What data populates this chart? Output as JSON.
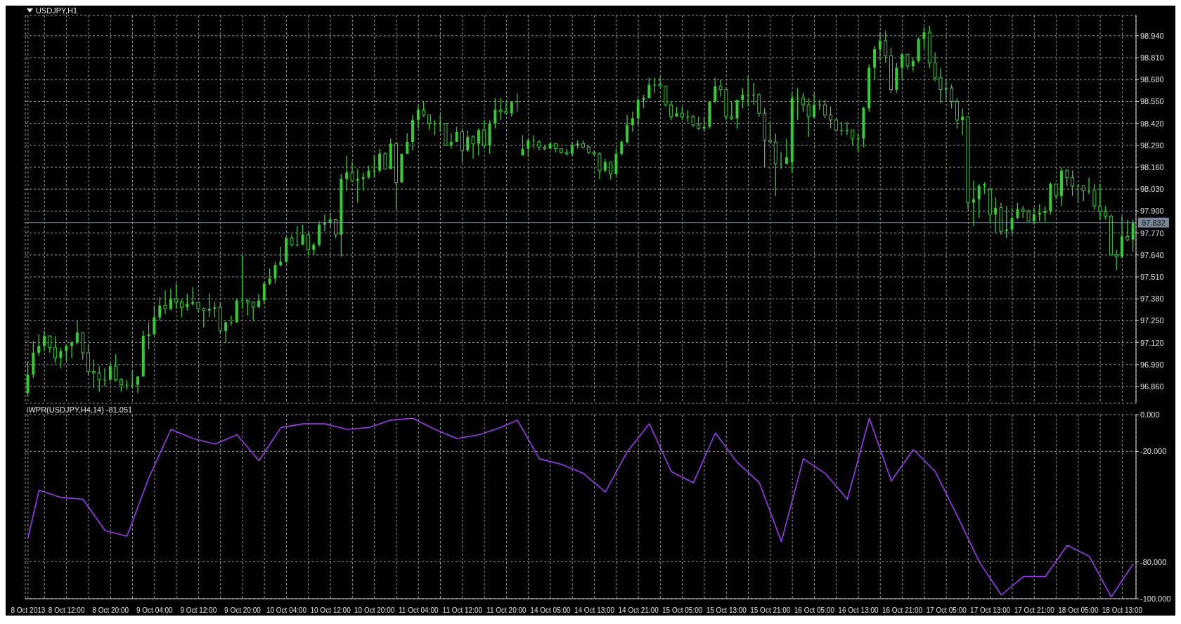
{
  "chart_data": [
    {
      "type": "candlestick",
      "title": "USDJPY,H1",
      "color": "#33cc33",
      "grid": true,
      "tick_labels": "y",
      "ohlc": [
        [
          96.82,
          97.01,
          96.8,
          96.93
        ],
        [
          96.93,
          97.13,
          96.91,
          97.06
        ],
        [
          97.06,
          97.17,
          97.04,
          97.1
        ],
        [
          97.1,
          97.19,
          97.07,
          97.16
        ],
        [
          97.16,
          97.16,
          97.06,
          97.09
        ],
        [
          97.09,
          97.16,
          97.0,
          97.03
        ],
        [
          97.03,
          97.09,
          96.97,
          97.07
        ],
        [
          97.07,
          97.11,
          97.01,
          97.1
        ],
        [
          97.1,
          97.13,
          97.03,
          97.12
        ],
        [
          97.12,
          97.25,
          97.11,
          97.18
        ],
        [
          97.18,
          97.18,
          97.02,
          97.06
        ],
        [
          97.06,
          97.11,
          96.93,
          96.95
        ],
        [
          96.95,
          97.02,
          96.85,
          96.94
        ],
        [
          96.94,
          96.98,
          96.83,
          96.9
        ],
        [
          96.9,
          96.97,
          96.86,
          96.9
        ],
        [
          96.9,
          97.0,
          96.89,
          96.98
        ],
        [
          96.98,
          97.05,
          96.89,
          96.9
        ],
        [
          96.9,
          96.91,
          96.83,
          96.87
        ],
        [
          96.87,
          96.9,
          96.84,
          96.87
        ],
        [
          96.87,
          96.95,
          96.85,
          96.87
        ],
        [
          96.87,
          96.92,
          96.82,
          96.92
        ],
        [
          96.92,
          97.19,
          96.92,
          97.16
        ],
        [
          97.16,
          97.24,
          97.08,
          97.17
        ],
        [
          97.17,
          97.34,
          97.16,
          97.27
        ],
        [
          97.27,
          97.39,
          97.25,
          97.34
        ],
        [
          97.34,
          97.43,
          97.29,
          97.32
        ],
        [
          97.32,
          97.44,
          97.31,
          97.38
        ],
        [
          97.38,
          97.47,
          97.32,
          97.36
        ],
        [
          97.36,
          97.38,
          97.27,
          97.33
        ],
        [
          97.33,
          97.41,
          97.31,
          97.35
        ],
        [
          97.35,
          97.45,
          97.34,
          97.36
        ],
        [
          97.36,
          97.36,
          97.3,
          97.32
        ],
        [
          97.32,
          97.33,
          97.21,
          97.31
        ],
        [
          97.31,
          97.41,
          97.27,
          97.32
        ],
        [
          97.32,
          97.36,
          97.27,
          97.33
        ],
        [
          97.33,
          97.36,
          97.17,
          97.19
        ],
        [
          97.19,
          97.25,
          97.12,
          97.24
        ],
        [
          97.24,
          97.28,
          97.22,
          97.24
        ],
        [
          97.24,
          97.38,
          97.24,
          97.37
        ],
        [
          97.37,
          97.64,
          97.32,
          97.37
        ],
        [
          97.37,
          97.38,
          97.28,
          97.36
        ],
        [
          97.36,
          97.36,
          97.25,
          97.33
        ],
        [
          97.33,
          97.41,
          97.33,
          97.37
        ],
        [
          97.37,
          97.48,
          97.35,
          97.47
        ],
        [
          97.47,
          97.56,
          97.46,
          97.5
        ],
        [
          97.5,
          97.6,
          97.47,
          97.58
        ],
        [
          97.58,
          97.69,
          97.57,
          97.6
        ],
        [
          97.6,
          97.75,
          97.59,
          97.74
        ],
        [
          97.74,
          97.76,
          97.69,
          97.7
        ],
        [
          97.7,
          97.81,
          97.69,
          97.7
        ],
        [
          97.7,
          97.82,
          97.7,
          97.76
        ],
        [
          97.76,
          97.77,
          97.64,
          97.67
        ],
        [
          97.67,
          97.71,
          97.64,
          97.7
        ],
        [
          97.7,
          97.84,
          97.69,
          97.82
        ],
        [
          97.82,
          97.88,
          97.78,
          97.83
        ],
        [
          97.83,
          97.89,
          97.8,
          97.85
        ],
        [
          97.85,
          97.85,
          97.74,
          97.76
        ],
        [
          97.76,
          98.12,
          97.63,
          98.09
        ],
        [
          98.09,
          98.23,
          98.02,
          98.13
        ],
        [
          98.13,
          98.19,
          98.07,
          98.08
        ],
        [
          98.08,
          98.15,
          97.95,
          98.09
        ],
        [
          98.09,
          98.13,
          98.02,
          98.1
        ],
        [
          98.1,
          98.17,
          98.09,
          98.14
        ],
        [
          98.14,
          98.23,
          98.1,
          98.14
        ],
        [
          98.14,
          98.27,
          98.13,
          98.24
        ],
        [
          98.24,
          98.25,
          98.15,
          98.15
        ],
        [
          98.15,
          98.33,
          98.15,
          98.3
        ],
        [
          98.3,
          98.31,
          97.91,
          98.07
        ],
        [
          98.07,
          98.24,
          98.07,
          98.24
        ],
        [
          98.24,
          98.36,
          98.24,
          98.31
        ],
        [
          98.31,
          98.47,
          98.26,
          98.44
        ],
        [
          98.44,
          98.53,
          98.39,
          98.5
        ],
        [
          98.5,
          98.55,
          98.46,
          98.47
        ],
        [
          98.47,
          98.47,
          98.38,
          98.42
        ],
        [
          98.42,
          98.44,
          98.35,
          98.42
        ],
        [
          98.42,
          98.47,
          98.37,
          98.42
        ],
        [
          98.42,
          98.42,
          98.29,
          98.29
        ],
        [
          98.29,
          98.36,
          98.27,
          98.31
        ],
        [
          98.31,
          98.4,
          98.31,
          98.37
        ],
        [
          98.37,
          98.39,
          98.19,
          98.26
        ],
        [
          98.26,
          98.38,
          98.25,
          98.34
        ],
        [
          98.34,
          98.35,
          98.21,
          98.3
        ],
        [
          98.3,
          98.39,
          98.23,
          98.38
        ],
        [
          98.38,
          98.44,
          98.27,
          98.29
        ],
        [
          98.29,
          98.44,
          98.24,
          98.42
        ],
        [
          98.42,
          98.57,
          98.39,
          98.5
        ],
        [
          98.5,
          98.57,
          98.44,
          98.49
        ],
        [
          98.49,
          98.55,
          98.47,
          98.48
        ],
        [
          98.48,
          98.55,
          98.46,
          98.55
        ],
        [
          98.55,
          98.6,
          98.49,
          98.55
        ],
        [
          98.23,
          98.35,
          98.23,
          98.27
        ],
        [
          98.27,
          98.33,
          98.22,
          98.32
        ],
        [
          98.32,
          98.35,
          98.27,
          98.32
        ],
        [
          98.31,
          98.32,
          98.26,
          98.28
        ],
        [
          98.28,
          98.29,
          98.26,
          98.27
        ],
        [
          98.27,
          98.31,
          98.27,
          98.3
        ],
        [
          98.3,
          98.3,
          98.25,
          98.27
        ],
        [
          98.27,
          98.27,
          98.24,
          98.25
        ],
        [
          98.25,
          98.27,
          98.23,
          98.24
        ],
        [
          98.24,
          98.31,
          98.23,
          98.29
        ],
        [
          98.29,
          98.32,
          98.27,
          98.3
        ],
        [
          98.3,
          98.32,
          98.27,
          98.28
        ],
        [
          98.28,
          98.29,
          98.24,
          98.25
        ],
        [
          98.25,
          98.26,
          98.23,
          98.24
        ],
        [
          98.24,
          98.25,
          98.09,
          98.14
        ],
        [
          98.14,
          98.21,
          98.13,
          98.19
        ],
        [
          98.19,
          98.19,
          98.09,
          98.12
        ],
        [
          98.12,
          98.27,
          98.11,
          98.24
        ],
        [
          98.24,
          98.32,
          98.23,
          98.31
        ],
        [
          98.31,
          98.47,
          98.3,
          98.41
        ],
        [
          98.41,
          98.49,
          98.37,
          98.45
        ],
        [
          98.45,
          98.57,
          98.41,
          98.56
        ],
        [
          98.56,
          98.59,
          98.51,
          98.57
        ],
        [
          98.57,
          98.69,
          98.57,
          98.65
        ],
        [
          98.65,
          98.69,
          98.6,
          98.65
        ],
        [
          98.65,
          98.7,
          98.64,
          98.64
        ],
        [
          98.64,
          98.64,
          98.52,
          98.53
        ],
        [
          98.53,
          98.55,
          98.44,
          98.46
        ],
        [
          98.46,
          98.52,
          98.46,
          98.48
        ],
        [
          98.48,
          98.52,
          98.44,
          98.46
        ],
        [
          98.46,
          98.5,
          98.43,
          98.46
        ],
        [
          98.46,
          98.47,
          98.4,
          98.41
        ],
        [
          98.41,
          98.46,
          98.38,
          98.39
        ],
        [
          98.39,
          98.46,
          98.37,
          98.4
        ],
        [
          98.4,
          98.55,
          98.39,
          98.55
        ],
        [
          98.55,
          98.69,
          98.54,
          98.64
        ],
        [
          98.64,
          98.68,
          98.58,
          98.62
        ],
        [
          98.62,
          98.62,
          98.44,
          98.46
        ],
        [
          98.46,
          98.55,
          98.44,
          98.45
        ],
        [
          98.45,
          98.56,
          98.39,
          98.56
        ],
        [
          98.56,
          98.63,
          98.51,
          98.59
        ],
        [
          98.59,
          98.7,
          98.52,
          98.59
        ],
        [
          98.59,
          98.66,
          98.53,
          98.59
        ],
        [
          98.59,
          98.6,
          98.46,
          98.48
        ],
        [
          98.48,
          98.51,
          98.16,
          98.32
        ],
        [
          98.32,
          98.43,
          98.3,
          98.31
        ],
        [
          98.31,
          98.36,
          97.99,
          98.18
        ],
        [
          98.18,
          98.25,
          98.15,
          98.18
        ],
        [
          98.18,
          98.33,
          98.18,
          98.22
        ],
        [
          98.19,
          98.6,
          98.13,
          98.57
        ],
        [
          98.57,
          98.63,
          98.44,
          98.57
        ],
        [
          98.57,
          98.6,
          98.49,
          98.53
        ],
        [
          98.53,
          98.57,
          98.34,
          98.46
        ],
        [
          98.46,
          98.6,
          98.45,
          98.53
        ],
        [
          98.53,
          98.56,
          98.5,
          98.53
        ],
        [
          98.53,
          98.56,
          98.45,
          98.47
        ],
        [
          98.47,
          98.52,
          98.39,
          98.44
        ],
        [
          98.44,
          98.45,
          98.37,
          98.38
        ],
        [
          98.38,
          98.43,
          98.35,
          98.38
        ],
        [
          98.38,
          98.43,
          98.35,
          98.38
        ],
        [
          98.38,
          98.38,
          98.29,
          98.33
        ],
        [
          98.33,
          98.36,
          98.25,
          98.33
        ],
        [
          98.33,
          98.52,
          98.28,
          98.51
        ],
        [
          98.51,
          98.77,
          98.49,
          98.75
        ],
        [
          98.75,
          98.88,
          98.68,
          98.86
        ],
        [
          98.86,
          98.96,
          98.79,
          98.91
        ],
        [
          98.91,
          98.97,
          98.78,
          98.82
        ],
        [
          98.82,
          98.87,
          98.6,
          98.62
        ],
        [
          98.62,
          98.78,
          98.6,
          98.75
        ],
        [
          98.75,
          98.84,
          98.68,
          98.83
        ],
        [
          98.83,
          98.83,
          98.74,
          98.76
        ],
        [
          98.76,
          98.81,
          98.73,
          98.79
        ],
        [
          98.79,
          98.93,
          98.78,
          98.92
        ],
        [
          98.92,
          98.99,
          98.86,
          98.96
        ],
        [
          98.96,
          99.0,
          98.75,
          98.78
        ],
        [
          98.78,
          98.84,
          98.67,
          98.69
        ],
        [
          98.69,
          98.75,
          98.54,
          98.62
        ],
        [
          98.62,
          98.68,
          98.56,
          98.63
        ],
        [
          98.63,
          98.65,
          98.51,
          98.55
        ],
        [
          98.55,
          98.57,
          98.39,
          98.44
        ],
        [
          98.44,
          98.51,
          98.35,
          98.46
        ],
        [
          98.46,
          98.46,
          97.91,
          97.95
        ],
        [
          97.95,
          98.08,
          97.81,
          97.97
        ],
        [
          97.97,
          98.06,
          97.86,
          98.05
        ],
        [
          98.05,
          98.07,
          98.0,
          98.06
        ],
        [
          98.03,
          98.04,
          97.83,
          97.88
        ],
        [
          97.88,
          97.98,
          97.77,
          97.92
        ],
        [
          97.92,
          97.95,
          97.76,
          97.78
        ],
        [
          97.78,
          97.93,
          97.74,
          97.79
        ],
        [
          97.79,
          97.92,
          97.76,
          97.86
        ],
        [
          97.86,
          97.95,
          97.85,
          97.91
        ],
        [
          97.91,
          97.93,
          97.86,
          97.9
        ],
        [
          97.9,
          97.91,
          97.84,
          97.84
        ],
        [
          97.84,
          97.92,
          97.82,
          97.88
        ],
        [
          97.88,
          97.94,
          97.84,
          97.89
        ],
        [
          97.89,
          97.93,
          97.84,
          97.9
        ],
        [
          97.9,
          98.07,
          97.88,
          98.06
        ],
        [
          98.06,
          98.06,
          97.97,
          97.99
        ],
        [
          97.99,
          98.16,
          97.93,
          98.14
        ],
        [
          98.14,
          98.15,
          98.05,
          98.1
        ],
        [
          98.1,
          98.14,
          97.99,
          98.05
        ],
        [
          98.05,
          98.06,
          97.95,
          98.05
        ],
        [
          98.05,
          98.05,
          97.96,
          98.02
        ],
        [
          98.02,
          98.1,
          98.0,
          98.02
        ],
        [
          98.02,
          98.06,
          97.91,
          97.93
        ],
        [
          97.93,
          98.06,
          97.85,
          97.9
        ],
        [
          97.9,
          97.93,
          97.85,
          97.87
        ],
        [
          97.87,
          97.88,
          97.64,
          97.64
        ],
        [
          97.64,
          97.67,
          97.55,
          97.63
        ],
        [
          97.63,
          97.87,
          97.62,
          97.75
        ],
        [
          97.75,
          97.85,
          97.72,
          97.73
        ],
        [
          97.73,
          97.85,
          97.66,
          97.83
        ]
      ],
      "ylim": [
        96.76,
        99.06
      ],
      "yticks": [
        {
          "value": 96.86,
          "label": "96.860"
        },
        {
          "value": 96.99,
          "label": "96.990"
        },
        {
          "value": 97.12,
          "label": "97.120"
        },
        {
          "value": 97.25,
          "label": "97.250"
        },
        {
          "value": 97.38,
          "label": "97.380"
        },
        {
          "value": 97.51,
          "label": "97.510"
        },
        {
          "value": 97.64,
          "label": "97.640"
        },
        {
          "value": 97.77,
          "label": "97.770"
        },
        {
          "value": 97.9,
          "label": "97.900"
        },
        {
          "value": 98.03,
          "label": "98.030"
        },
        {
          "value": 98.16,
          "label": "98.160"
        },
        {
          "value": 98.29,
          "label": "98.290"
        },
        {
          "value": 98.42,
          "label": "98.420"
        },
        {
          "value": 98.55,
          "label": "98.550"
        },
        {
          "value": 98.68,
          "label": "98.680"
        },
        {
          "value": 98.81,
          "label": "98.810"
        },
        {
          "value": 98.94,
          "label": "98.940"
        }
      ],
      "ref_lines": [
        {
          "axis": "y",
          "value": 97.832,
          "label": "97.832",
          "color": "#778899"
        }
      ]
    },
    {
      "type": "line",
      "title": "iWPR(USDJPY,H4,14) -81.051",
      "color": "#9a3cf0",
      "grid": true,
      "categories": [
        "8 Oct 2013",
        null,
        null,
        null,
        null,
        null,
        null,
        "8 Oct 12:00",
        null,
        null,
        null,
        null,
        null,
        null,
        null,
        "8 Oct 20:00",
        null,
        null,
        null,
        null,
        null,
        null,
        null,
        "9 Oct 04:00",
        null,
        null,
        null,
        null,
        null,
        null,
        null,
        "9 Oct 12:00",
        null,
        null,
        null,
        null,
        null,
        null,
        null,
        "9 Oct 20:00",
        null,
        null,
        null,
        null,
        null,
        null,
        null,
        "10 Oct 04:00",
        null,
        null,
        null,
        null,
        null,
        null,
        null,
        "10 Oct 12:00",
        null,
        null,
        null,
        null,
        null,
        null,
        null,
        "10 Oct 20:00",
        null,
        null,
        null,
        null,
        null,
        null,
        null,
        "11 Oct 04:00",
        null,
        null,
        null,
        null,
        null,
        null,
        null,
        "11 Oct 12:00",
        null,
        null,
        null,
        null,
        null,
        null,
        null,
        "11 Oct 20:00",
        null,
        null,
        null,
        null,
        null,
        null,
        null,
        "14 Oct 05:00",
        null,
        null,
        null,
        null,
        null,
        null,
        null,
        "14 Oct 13:00",
        null,
        null,
        null,
        null,
        null,
        null,
        null,
        "14 Oct 21:00",
        null,
        null,
        null,
        null,
        null,
        null,
        null,
        "15 Oct 05:00",
        null,
        null,
        null,
        null,
        null,
        null,
        null,
        "15 Oct 13:00",
        null,
        null,
        null,
        null,
        null,
        null,
        null,
        "15 Oct 21:00",
        null,
        null,
        null,
        null,
        null,
        null,
        null,
        "16 Oct 05:00",
        null,
        null,
        null,
        null,
        null,
        null,
        null,
        "16 Oct 13:00",
        null,
        null,
        null,
        null,
        null,
        null,
        null,
        "16 Oct 21:00",
        null,
        null,
        null,
        null,
        null,
        null,
        null,
        "17 Oct 05:00",
        null,
        null,
        null,
        null,
        null,
        null,
        null,
        "17 Oct 13:00",
        null,
        null,
        null,
        null,
        null,
        null,
        null,
        "17 Oct 21:00",
        null,
        null,
        null,
        null,
        null,
        null,
        null,
        "18 Oct 05:00",
        null,
        null,
        null,
        null,
        null,
        null,
        null,
        "18 Oct 13:00",
        null,
        null
      ],
      "values": [
        -67,
        null,
        -41,
        null,
        null,
        null,
        -45,
        null,
        null,
        null,
        -46,
        null,
        null,
        null,
        -63,
        null,
        null,
        null,
        -66,
        null,
        null,
        null,
        -34,
        null,
        null,
        null,
        -8,
        null,
        null,
        null,
        -13,
        null,
        null,
        null,
        -16,
        null,
        null,
        null,
        -11,
        null,
        null,
        null,
        -25,
        null,
        null,
        null,
        -7,
        null,
        null,
        null,
        -5,
        null,
        null,
        null,
        -5,
        null,
        null,
        null,
        -8,
        null,
        null,
        null,
        -7,
        null,
        null,
        null,
        -3,
        null,
        null,
        null,
        -2,
        null,
        null,
        null,
        -8,
        null,
        null,
        null,
        -13,
        null,
        null,
        null,
        -11,
        null,
        null,
        null,
        -7,
        null,
        null,
        -3,
        null,
        null,
        null,
        -24,
        null,
        null,
        null,
        -27,
        null,
        null,
        null,
        -32,
        null,
        null,
        null,
        -42,
        null,
        null,
        null,
        -20,
        null,
        null,
        null,
        -5,
        null,
        null,
        null,
        -31,
        null,
        null,
        null,
        -37,
        null,
        null,
        null,
        -10,
        null,
        null,
        null,
        -26,
        null,
        null,
        null,
        -37,
        null,
        null,
        null,
        -69,
        null,
        null,
        null,
        -24,
        null,
        null,
        null,
        -32,
        null,
        null,
        null,
        -46,
        null,
        null,
        null,
        -2,
        null,
        null,
        null,
        -36,
        null,
        null,
        null,
        -19,
        null,
        null,
        null,
        -31,
        null,
        null,
        null,
        -55,
        null,
        null,
        null,
        -80,
        null,
        null,
        null,
        -98,
        null,
        null,
        null,
        -88,
        null,
        null,
        null,
        -88,
        null,
        null,
        null,
        -71,
        null,
        null,
        null,
        -77,
        null,
        null,
        null,
        -99,
        null,
        null,
        null,
        -81
      ],
      "ylim": [
        -100,
        0
      ],
      "yticks": [
        {
          "value": 0,
          "label": "0.000"
        },
        {
          "value": -20,
          "label": "-20.000"
        },
        {
          "value": -80,
          "label": "-80.000"
        },
        {
          "value": -100,
          "label": "-100.000"
        }
      ]
    }
  ]
}
